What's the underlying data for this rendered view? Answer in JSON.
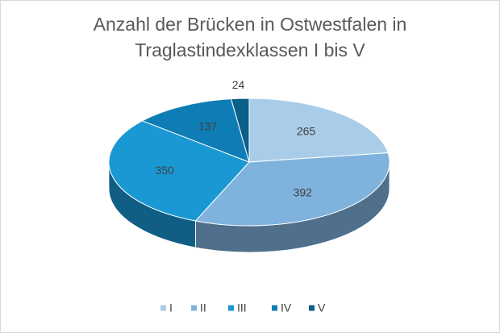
{
  "chart_data": {
    "type": "pie3d",
    "title": "Anzahl der Brücken in Ostwestfalen in Traglastindexklassen I bis V",
    "categories": [
      "I",
      "II",
      "III",
      "IV",
      "V"
    ],
    "values": [
      265,
      392,
      350,
      137,
      24
    ],
    "colors": [
      "#a9cde9",
      "#7fb3de",
      "#1a98d4",
      "#0f7db5",
      "#0a5f8b"
    ],
    "legend": "bottom"
  }
}
